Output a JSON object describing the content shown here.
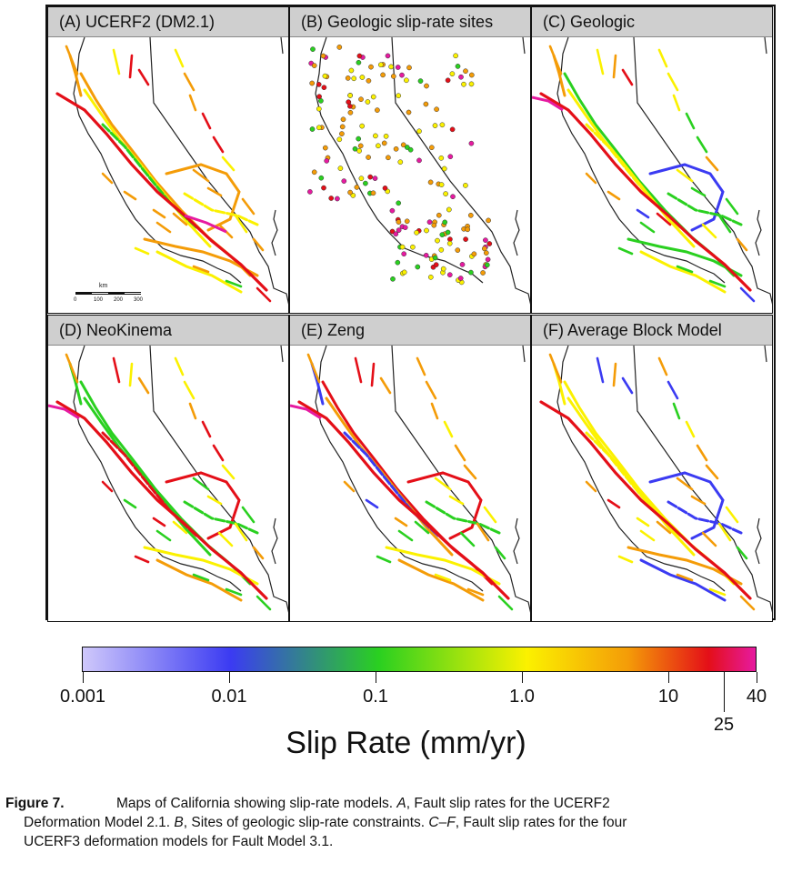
{
  "panels": [
    {
      "id": "A",
      "title": "(A) UCERF2 (DM2.1)",
      "kind": "faults"
    },
    {
      "id": "B",
      "title": "(B) Geologic slip-rate sites",
      "kind": "sites"
    },
    {
      "id": "C",
      "title": "(C) Geologic",
      "kind": "faults"
    },
    {
      "id": "D",
      "title": "(D) NeoKinema",
      "kind": "faults"
    },
    {
      "id": "E",
      "title": "(E) Zeng",
      "kind": "faults"
    },
    {
      "id": "F",
      "title": "(F) Average Block Model",
      "kind": "faults"
    }
  ],
  "scale_bar": {
    "unit": "km",
    "ticks": [
      "0",
      "100",
      "200",
      "300"
    ]
  },
  "colorbar": {
    "title": "Slip Rate (mm/yr)",
    "ticks": [
      "0.001",
      "0.01",
      "0.1",
      "1.0",
      "10",
      "40"
    ],
    "extra_tick": "25",
    "colors": [
      "#cfc8fb",
      "#3b3bf2",
      "#2ad020",
      "#fbf100",
      "#f49c08",
      "#e40f18",
      "#e61aa0"
    ]
  },
  "caption": {
    "label": "Figure 7.",
    "line1_pre": "Maps of California showing slip-rate models. ",
    "A": "A",
    "line1_post": ", Fault slip rates for the UCERF2",
    "line2_pre": "Deformation Model 2.1. ",
    "B": "B",
    "line2_mid": ", Sites of geologic slip-rate constraints. ",
    "CF": "C–F",
    "line2_post": ", Fault slip rates for the four",
    "line3": "UCERF3 deformation models for Fault Model 3.1."
  }
}
